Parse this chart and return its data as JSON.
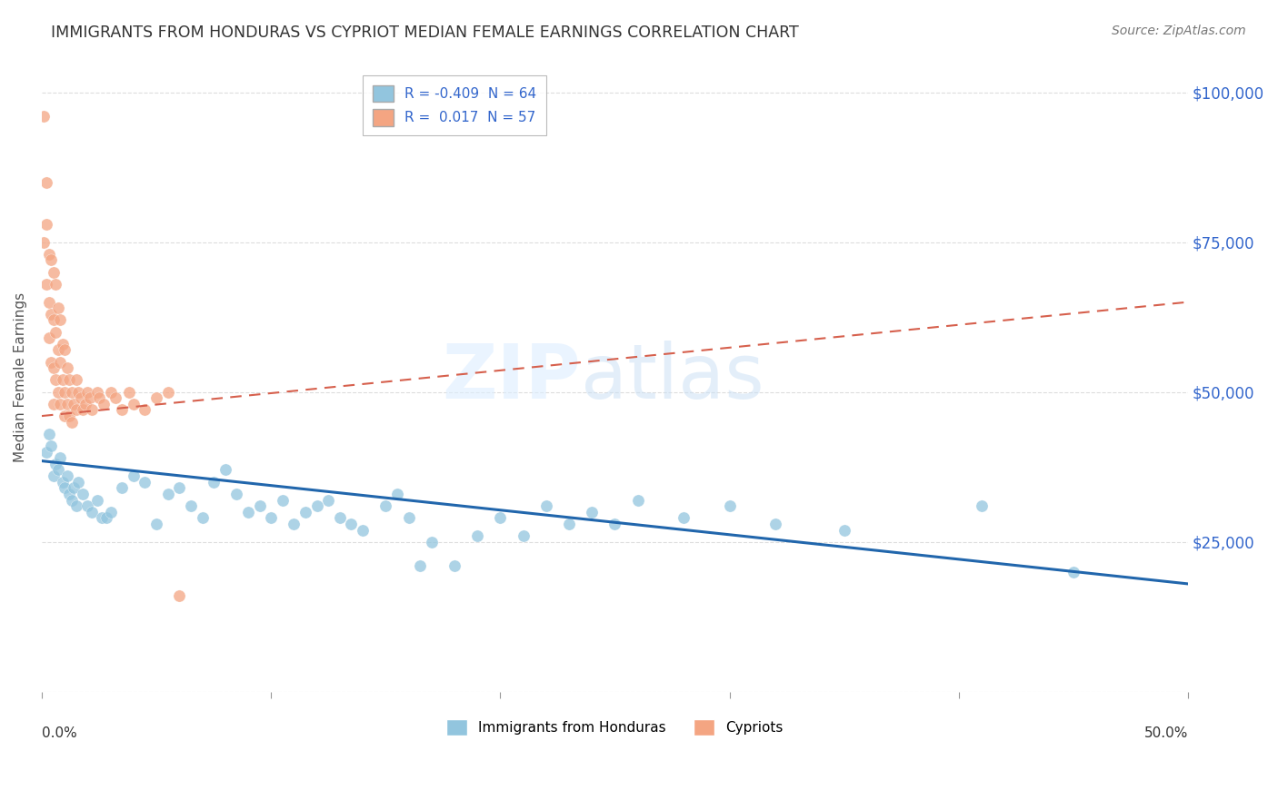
{
  "title": "IMMIGRANTS FROM HONDURAS VS CYPRIOT MEDIAN FEMALE EARNINGS CORRELATION CHART",
  "source": "Source: ZipAtlas.com",
  "ylabel": "Median Female Earnings",
  "x_min": 0.0,
  "x_max": 0.5,
  "y_min": 0,
  "y_max": 105000,
  "yticks": [
    0,
    25000,
    50000,
    75000,
    100000
  ],
  "ytick_labels": [
    "",
    "$25,000",
    "$50,000",
    "$75,000",
    "$100,000"
  ],
  "xticks": [
    0.0,
    0.1,
    0.2,
    0.3,
    0.4,
    0.5
  ],
  "legend_blue_label": "R = -0.409  N = 64",
  "legend_pink_label": "R =  0.017  N = 57",
  "legend_blue_series": "Immigrants from Honduras",
  "legend_pink_series": "Cypriots",
  "blue_color": "#92c5de",
  "pink_color": "#f4a582",
  "blue_line_color": "#2166ac",
  "pink_line_color": "#d6604d",
  "blue_scatter_x": [
    0.002,
    0.003,
    0.004,
    0.005,
    0.006,
    0.007,
    0.008,
    0.009,
    0.01,
    0.011,
    0.012,
    0.013,
    0.014,
    0.015,
    0.016,
    0.018,
    0.02,
    0.022,
    0.024,
    0.026,
    0.028,
    0.03,
    0.035,
    0.04,
    0.045,
    0.05,
    0.055,
    0.06,
    0.065,
    0.07,
    0.075,
    0.08,
    0.085,
    0.09,
    0.095,
    0.1,
    0.105,
    0.11,
    0.115,
    0.12,
    0.125,
    0.13,
    0.135,
    0.14,
    0.15,
    0.155,
    0.16,
    0.165,
    0.17,
    0.18,
    0.19,
    0.2,
    0.21,
    0.22,
    0.23,
    0.24,
    0.25,
    0.26,
    0.28,
    0.3,
    0.32,
    0.35,
    0.41,
    0.45
  ],
  "blue_scatter_y": [
    40000,
    43000,
    41000,
    36000,
    38000,
    37000,
    39000,
    35000,
    34000,
    36000,
    33000,
    32000,
    34000,
    31000,
    35000,
    33000,
    31000,
    30000,
    32000,
    29000,
    29000,
    30000,
    34000,
    36000,
    35000,
    28000,
    33000,
    34000,
    31000,
    29000,
    35000,
    37000,
    33000,
    30000,
    31000,
    29000,
    32000,
    28000,
    30000,
    31000,
    32000,
    29000,
    28000,
    27000,
    31000,
    33000,
    29000,
    21000,
    25000,
    21000,
    26000,
    29000,
    26000,
    31000,
    28000,
    30000,
    28000,
    32000,
    29000,
    31000,
    28000,
    27000,
    31000,
    20000
  ],
  "pink_scatter_x": [
    0.001,
    0.001,
    0.002,
    0.002,
    0.002,
    0.003,
    0.003,
    0.003,
    0.004,
    0.004,
    0.004,
    0.005,
    0.005,
    0.005,
    0.005,
    0.006,
    0.006,
    0.006,
    0.007,
    0.007,
    0.007,
    0.008,
    0.008,
    0.008,
    0.009,
    0.009,
    0.01,
    0.01,
    0.01,
    0.011,
    0.011,
    0.012,
    0.012,
    0.013,
    0.013,
    0.014,
    0.015,
    0.015,
    0.016,
    0.017,
    0.018,
    0.019,
    0.02,
    0.021,
    0.022,
    0.024,
    0.025,
    0.027,
    0.03,
    0.032,
    0.035,
    0.038,
    0.04,
    0.045,
    0.05,
    0.055,
    0.06
  ],
  "pink_scatter_y": [
    96000,
    75000,
    85000,
    78000,
    68000,
    73000,
    65000,
    59000,
    72000,
    63000,
    55000,
    70000,
    62000,
    54000,
    48000,
    68000,
    60000,
    52000,
    64000,
    57000,
    50000,
    62000,
    55000,
    48000,
    58000,
    52000,
    57000,
    50000,
    46000,
    54000,
    48000,
    52000,
    46000,
    50000,
    45000,
    48000,
    52000,
    47000,
    50000,
    49000,
    47000,
    48000,
    50000,
    49000,
    47000,
    50000,
    49000,
    48000,
    50000,
    49000,
    47000,
    50000,
    48000,
    47000,
    49000,
    50000,
    16000
  ],
  "blue_trend_x": [
    0.0,
    0.5
  ],
  "blue_trend_y": [
    38500,
    18000
  ],
  "pink_trend_x": [
    0.0,
    0.5
  ],
  "pink_trend_y": [
    46000,
    65000
  ]
}
